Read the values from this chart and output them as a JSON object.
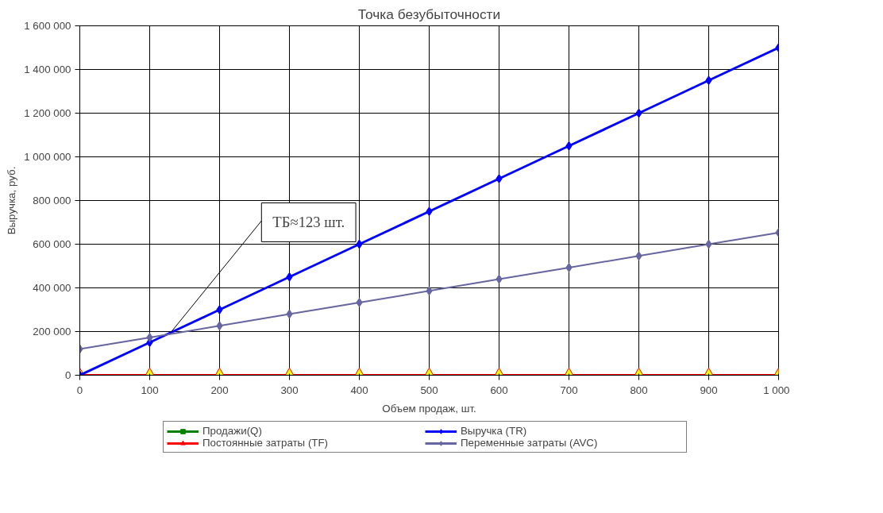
{
  "chart_data": {
    "type": "line",
    "title": "Точка безубыточности",
    "xlabel": "Объем продаж, шт.",
    "ylabel": "Выручка, руб.",
    "x": [
      0,
      100,
      200,
      300,
      400,
      500,
      600,
      700,
      800,
      900,
      1000
    ],
    "xlim": [
      0,
      1000
    ],
    "ylim": [
      0,
      1600000
    ],
    "xticks": [
      0,
      100,
      200,
      300,
      400,
      500,
      600,
      700,
      800,
      900,
      {
        "value": 1000,
        "label": "1 000"
      }
    ],
    "yticks": [
      0,
      {
        "value": 200000,
        "label": "200 000"
      },
      {
        "value": 400000,
        "label": "400 000"
      },
      {
        "value": 600000,
        "label": "600 000"
      },
      {
        "value": 800000,
        "label": "800 000"
      },
      {
        "value": 1000000,
        "label": "1 000 000"
      },
      {
        "value": 1200000,
        "label": "1 200 000"
      },
      {
        "value": 1400000,
        "label": "1 400 000"
      },
      {
        "value": 1600000,
        "label": "1 600 000"
      }
    ],
    "grid": true,
    "legend": "bottom",
    "series": [
      {
        "name": "Продажи(Q)",
        "color": "#008000",
        "marker": "square",
        "values": [
          null,
          null,
          null,
          null,
          null,
          null,
          null,
          null,
          null,
          null,
          null
        ]
      },
      {
        "name": "Постоянные затраты (TF)",
        "color": "#ff0000",
        "marker": "triangle",
        "values": [
          0,
          0,
          0,
          0,
          0,
          0,
          0,
          0,
          0,
          0,
          0
        ]
      },
      {
        "type": "scatter",
        "color": "#ffff00",
        "marker": "triangle",
        "values": [
          0,
          0,
          0,
          0,
          0,
          0,
          0,
          0,
          0,
          0,
          0
        ]
      },
      {
        "name": "Выручка (TR)",
        "color": "#0000ff",
        "marker": "diamond",
        "values": [
          0,
          150000,
          300000,
          450000,
          600000,
          750000,
          900000,
          1050000,
          1200000,
          1350000,
          1500000
        ]
      },
      {
        "name": "Переменные затраты (AVC)",
        "color": "#6666a0",
        "marker": "diamond",
        "values": [
          120000,
          173000,
          226000,
          280000,
          333000,
          386000,
          440000,
          493000,
          546000,
          600000,
          653000
        ]
      }
    ],
    "annotations": [
      {
        "text": "ТБ≈123 шт.",
        "x": 130,
        "y": 195000
      }
    ]
  }
}
